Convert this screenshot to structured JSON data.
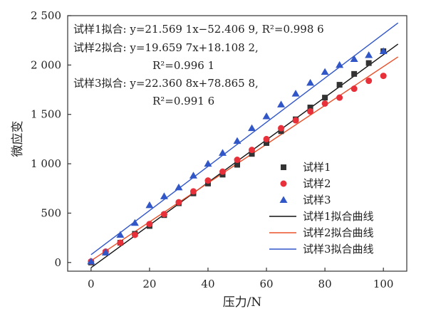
{
  "chart_data": {
    "type": "scatter",
    "xlabel": "压力/N",
    "ylabel": "微应变",
    "xlim": [
      -8,
      108
    ],
    "ylim": [
      -88,
      2500
    ],
    "xticks": [
      0,
      20,
      40,
      60,
      80,
      100
    ],
    "yticks": [
      0,
      500,
      1000,
      1500,
      2000,
      2500
    ],
    "xtick_labels": [
      "0",
      "20",
      "40",
      "60",
      "80",
      "100"
    ],
    "ytick_labels": [
      "0",
      "500",
      "1 000",
      "1 500",
      "2 000",
      "2 500"
    ],
    "grid": false,
    "legend_position": "lower-right",
    "annotations": {
      "fit1_prefix": "试样1拟合: ",
      "fit1_eq": "y=21.569 1x−52.406 9, R²=0.998 6",
      "fit2_prefix": "试样2拟合: ",
      "fit2_eq": "y=19.659 7x+18.108 2,",
      "fit2_r2": "R²=0.996 1",
      "fit3_prefix": "试样3拟合: ",
      "fit3_eq": "y=22.360 8x+78.865 8,",
      "fit3_r2": "R²=0.991 6"
    },
    "series": [
      {
        "name": "试样1",
        "kind": "scatter",
        "marker": "square",
        "color": "#333333",
        "x": [
          0,
          5,
          10,
          15,
          20,
          25,
          30,
          35,
          40,
          45,
          50,
          55,
          60,
          65,
          70,
          75,
          80,
          85,
          90,
          95,
          100
        ],
        "y": [
          0,
          100,
          200,
          290,
          370,
          480,
          600,
          700,
          800,
          890,
          990,
          1100,
          1210,
          1330,
          1450,
          1570,
          1670,
          1800,
          1910,
          2020,
          2140
        ]
      },
      {
        "name": "试样2",
        "kind": "scatter",
        "marker": "circle",
        "color": "#e8303a",
        "x": [
          0,
          5,
          10,
          15,
          20,
          25,
          30,
          35,
          40,
          45,
          50,
          55,
          60,
          65,
          70,
          75,
          80,
          85,
          90,
          95,
          100
        ],
        "y": [
          10,
          110,
          200,
          280,
          390,
          490,
          610,
          720,
          830,
          920,
          1040,
          1140,
          1250,
          1360,
          1440,
          1530,
          1610,
          1670,
          1760,
          1840,
          1890
        ]
      },
      {
        "name": "试样3",
        "kind": "scatter",
        "marker": "triangle",
        "color": "#3056c8",
        "x": [
          0,
          5,
          10,
          15,
          20,
          25,
          30,
          35,
          40,
          45,
          50,
          55,
          60,
          65,
          70,
          75,
          80,
          85,
          90,
          95,
          100
        ],
        "y": [
          10,
          100,
          280,
          400,
          580,
          670,
          760,
          880,
          1000,
          1110,
          1230,
          1360,
          1480,
          1600,
          1710,
          1820,
          1930,
          2000,
          2060,
          2100,
          2140
        ]
      },
      {
        "name": "试样1拟合曲线",
        "kind": "line",
        "color": "#111111",
        "slope": 21.5691,
        "intercept": -52.4069,
        "x_range": [
          0,
          105
        ]
      },
      {
        "name": "试样2拟合曲线",
        "kind": "line",
        "color": "#e8502a",
        "slope": 19.6597,
        "intercept": 18.1082,
        "x_range": [
          0,
          105
        ]
      },
      {
        "name": "试样3拟合曲线",
        "kind": "line",
        "color": "#3056c8",
        "slope": 22.3608,
        "intercept": 78.8658,
        "x_range": [
          0,
          105
        ]
      }
    ]
  }
}
